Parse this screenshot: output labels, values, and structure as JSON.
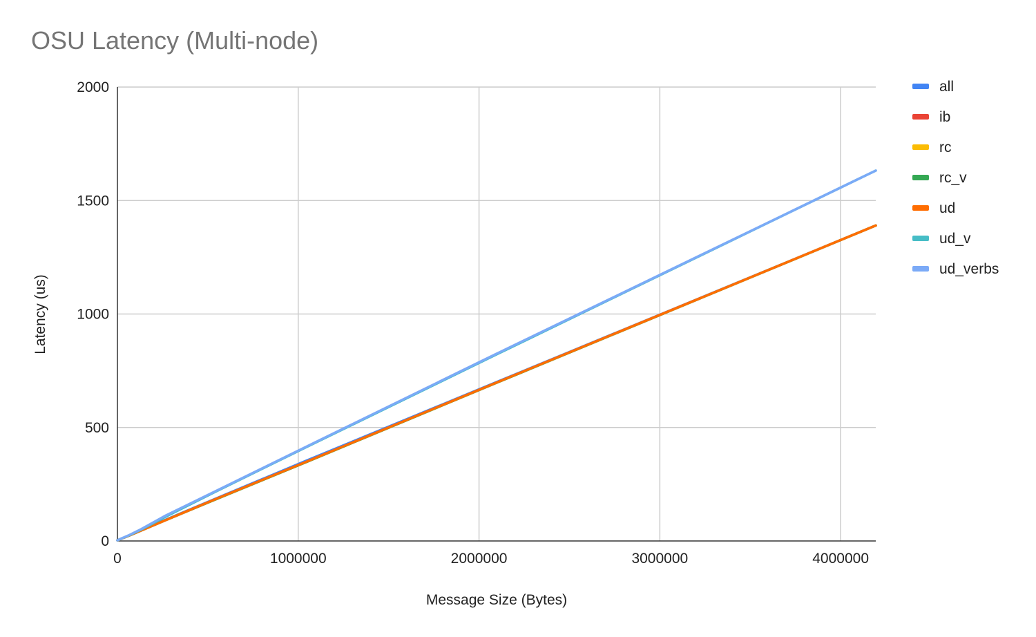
{
  "chart_data": {
    "type": "line",
    "title": "OSU Latency (Multi-node)",
    "xlabel": "Message Size (Bytes)",
    "ylabel": "Latency (us)",
    "xlim": [
      0,
      4194304
    ],
    "ylim": [
      0,
      2000
    ],
    "x_ticks": [
      0,
      1000000,
      2000000,
      3000000,
      4000000
    ],
    "x_tick_labels": [
      "0",
      "1000000",
      "2000000",
      "3000000",
      "4000000"
    ],
    "y_ticks": [
      0,
      500,
      1000,
      1500,
      2000
    ],
    "y_tick_labels": [
      "0",
      "500",
      "1000",
      "1500",
      "2000"
    ],
    "grid": true,
    "legend_position": "right",
    "x": [
      1,
      65536,
      131072,
      262144,
      524288,
      1048576,
      2097152,
      4194304
    ],
    "series": [
      {
        "name": "all",
        "color": "#4285f4",
        "values": [
          3,
          25,
          48,
          92,
          180,
          355,
          700,
          1390
        ]
      },
      {
        "name": "ib",
        "color": "#ea4335",
        "values": [
          3,
          24,
          46,
          90,
          178,
          350,
          698,
          1390
        ]
      },
      {
        "name": "rc",
        "color": "#fbbc04",
        "values": [
          3,
          24,
          46,
          90,
          177,
          349,
          697,
          1390
        ]
      },
      {
        "name": "rc_v",
        "color": "#34a853",
        "values": [
          3,
          24,
          46,
          90,
          177,
          349,
          697,
          1390
        ]
      },
      {
        "name": "ud",
        "color": "#ff6d01",
        "values": [
          3,
          24,
          46,
          90,
          178,
          350,
          698,
          1390
        ]
      },
      {
        "name": "ud_v",
        "color": "#46bdc6",
        "values": [
          3,
          25,
          50,
          105,
          210,
          415,
          822,
          1632
        ]
      },
      {
        "name": "ud_verbs",
        "color": "#7baaf7",
        "values": [
          3,
          26,
          52,
          110,
          212,
          417,
          825,
          1632
        ]
      }
    ]
  }
}
